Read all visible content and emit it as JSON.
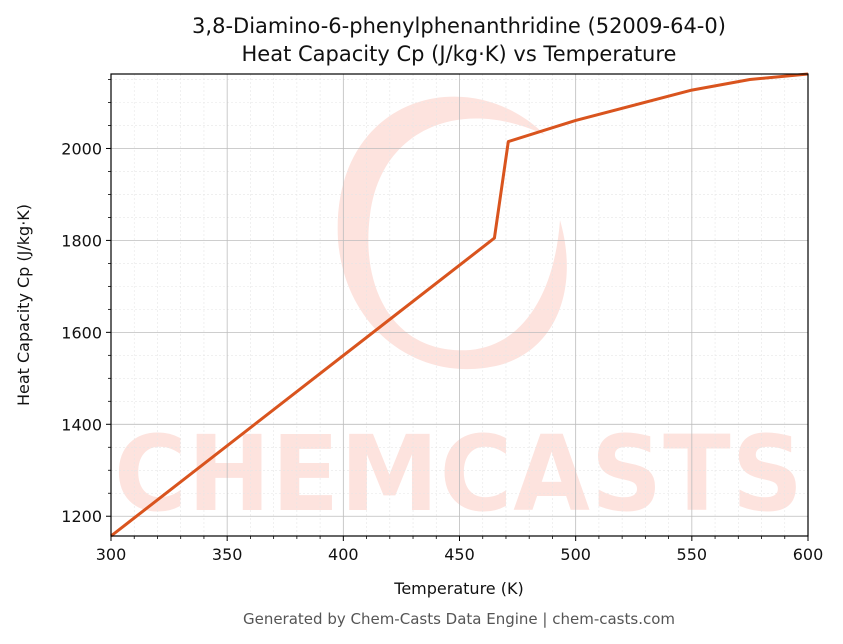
{
  "chart_data": {
    "type": "line",
    "title_line1": "3,8-Diamino-6-phenylphenanthridine (52009-64-0)",
    "title_line2": "Heat Capacity Cp (J/kg·K) vs Temperature",
    "xlabel": "Temperature (K)",
    "ylabel": "Heat Capacity Cp (J/kg·K)",
    "xlim": [
      300,
      600
    ],
    "ylim": [
      1157,
      2162
    ],
    "x_ticks": [
      300,
      350,
      400,
      450,
      500,
      550,
      600
    ],
    "y_ticks": [
      1200,
      1400,
      1600,
      1800,
      2000
    ],
    "grid": true,
    "series": [
      {
        "color": "#d9541e",
        "points": [
          [
            300,
            1157
          ],
          [
            465,
            1805
          ],
          [
            471,
            2015
          ],
          [
            500,
            2061
          ],
          [
            550,
            2127
          ],
          [
            575,
            2150
          ],
          [
            600,
            2162
          ]
        ]
      }
    ]
  },
  "watermark": {
    "text": "CHEMCASTS",
    "color": "#fde3de"
  },
  "footer": "Generated by Chem-Casts Data Engine | chem-casts.com"
}
